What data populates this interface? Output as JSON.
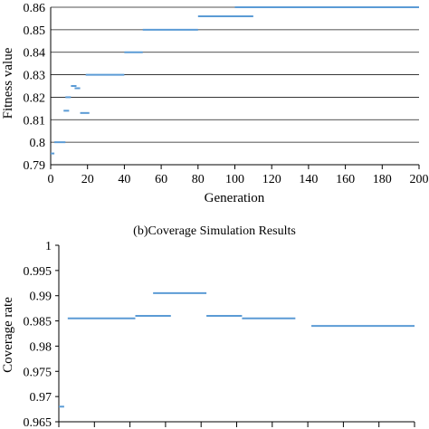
{
  "chart_data": [
    {
      "type": "scatter",
      "marker": "horizontal-dash",
      "title": "",
      "xlabel": "Generation",
      "ylabel": "Fitness value",
      "xlim": [
        0,
        200
      ],
      "ylim": [
        0.79,
        0.86
      ],
      "xticks": [
        "0",
        "20",
        "40",
        "60",
        "80",
        "100",
        "120",
        "140",
        "160",
        "180",
        "200"
      ],
      "yticks": [
        "0.79",
        "0.8",
        "0.81",
        "0.82",
        "0.83",
        "0.84",
        "0.85",
        "0.86"
      ],
      "grid": "horizontal",
      "legend": "none",
      "series_color": "#5b9bd5",
      "segments": [
        {
          "x_start": 0,
          "x_end": 2,
          "y": 0.795
        },
        {
          "x_start": 2,
          "x_end": 8,
          "y": 0.8
        },
        {
          "x_start": 7,
          "x_end": 10,
          "y": 0.814
        },
        {
          "x_start": 8,
          "x_end": 11,
          "y": 0.82
        },
        {
          "x_start": 11,
          "x_end": 14,
          "y": 0.825
        },
        {
          "x_start": 13,
          "x_end": 16,
          "y": 0.824
        },
        {
          "x_start": 16,
          "x_end": 21,
          "y": 0.813
        },
        {
          "x_start": 19,
          "x_end": 40,
          "y": 0.83
        },
        {
          "x_start": 40,
          "x_end": 50,
          "y": 0.84
        },
        {
          "x_start": 50,
          "x_end": 80,
          "y": 0.85
        },
        {
          "x_start": 80,
          "x_end": 110,
          "y": 0.856
        },
        {
          "x_start": 100,
          "x_end": 200,
          "y": 0.86
        }
      ]
    },
    {
      "type": "scatter",
      "marker": "horizontal-dash",
      "title": "(b)Coverage Simulation Results",
      "xlabel": "",
      "ylabel": "Coverage rate",
      "ylim": [
        0.965,
        1
      ],
      "xlim": [
        0,
        200
      ],
      "yticks": [
        "0.965",
        "0.97",
        "0.975",
        "0.98",
        "0.985",
        "0.99",
        "0.995",
        "1"
      ],
      "xtick_count": 11,
      "grid": "none",
      "legend": "none",
      "series_color": "#5b9bd5",
      "segments": [
        {
          "x_start": 0,
          "x_end": 3,
          "y": 0.968
        },
        {
          "x_start": 5,
          "x_end": 43,
          "y": 0.9855
        },
        {
          "x_start": 43,
          "x_end": 63,
          "y": 0.986
        },
        {
          "x_start": 53,
          "x_end": 83,
          "y": 0.9905
        },
        {
          "x_start": 83,
          "x_end": 103,
          "y": 0.986
        },
        {
          "x_start": 103,
          "x_end": 133,
          "y": 0.9855
        },
        {
          "x_start": 142,
          "x_end": 200,
          "y": 0.984
        }
      ]
    }
  ]
}
